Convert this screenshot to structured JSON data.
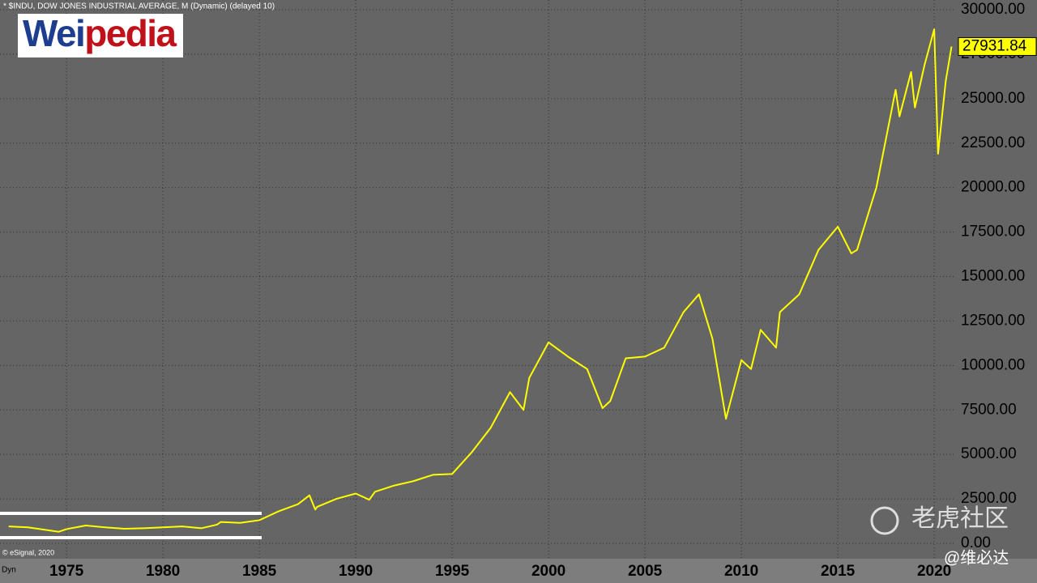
{
  "chart_data": {
    "type": "line",
    "title": "* $INDU, DOW JONES INDUSTRIAL AVERAGE, M (Dynamic) (delayed 10)",
    "logo": [
      "Wei",
      "pedia"
    ],
    "credit": "© eSignal, 2020",
    "mode": "Dyn",
    "watermark": "老虎社区",
    "watermark_author": "@维必达",
    "color": "#ffff00",
    "grid": true,
    "x": [
      1972,
      1973,
      1974.6,
      1975,
      1976,
      1977,
      1978,
      1979,
      1980,
      1981,
      1982,
      1982.8,
      1983,
      1984,
      1985,
      1986,
      1987,
      1987.6,
      1987.9,
      1988,
      1989,
      1990,
      1990.7,
      1991,
      1992,
      1993,
      1994,
      1995,
      1996,
      1997,
      1998,
      1998.7,
      1999,
      2000,
      2001,
      2002,
      2002.8,
      2003.2,
      2004,
      2005,
      2006,
      2007,
      2007.8,
      2008.5,
      2009.2,
      2010,
      2010.5,
      2011,
      2011.8,
      2012,
      2013,
      2014,
      2015,
      2015.7,
      2016,
      2017,
      2018,
      2018.2,
      2018.8,
      2019,
      2019.5,
      2020,
      2020.2,
      2020.6,
      2020.9
    ],
    "values": [
      950,
      900,
      650,
      800,
      1000,
      900,
      820,
      850,
      900,
      950,
      850,
      1050,
      1200,
      1150,
      1300,
      1800,
      2200,
      2700,
      1900,
      2050,
      2500,
      2800,
      2450,
      2900,
      3250,
      3500,
      3850,
      3900,
      5100,
      6500,
      8500,
      7500,
      9300,
      11300,
      10500,
      9800,
      7600,
      8000,
      10400,
      10500,
      11000,
      13000,
      14000,
      11500,
      7000,
      10300,
      9800,
      12000,
      11000,
      13000,
      14000,
      16500,
      17800,
      16300,
      16500,
      20000,
      25500,
      24000,
      26500,
      24500,
      26900,
      28900,
      21900,
      26000,
      27931.84
    ],
    "xlim": [
      1971.55,
      2021.13
    ],
    "xticks": [
      1975,
      1980,
      1985,
      1990,
      1995,
      2000,
      2005,
      2010,
      2015,
      2020
    ],
    "ylim": [
      0,
      30000
    ],
    "yticks": [
      {
        "value": 0,
        "label": "0.00"
      },
      {
        "value": 2500,
        "label": "2500.00"
      },
      {
        "value": 5000,
        "label": "5000.00"
      },
      {
        "value": 7500,
        "label": "7500.00"
      },
      {
        "value": 10000,
        "label": "10000.00"
      },
      {
        "value": 12500,
        "label": "12500.00"
      },
      {
        "value": 15000,
        "label": "15000.00"
      },
      {
        "value": 17500,
        "label": "17500.00"
      },
      {
        "value": 20000,
        "label": "20000.00"
      },
      {
        "value": 22500,
        "label": "22500.00"
      },
      {
        "value": 25000,
        "label": "25000.00"
      },
      {
        "value": 27500,
        "label": "27500.00"
      },
      {
        "value": 30000,
        "label": "30000.00"
      }
    ]
  }
}
